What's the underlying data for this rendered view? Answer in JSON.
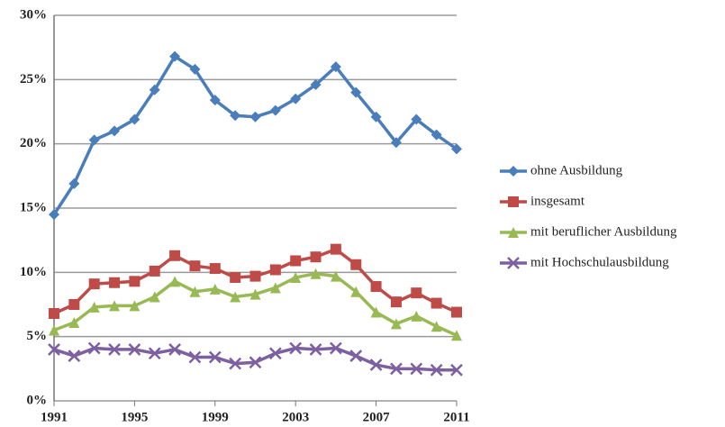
{
  "chart_data": {
    "type": "line",
    "x": [
      1991,
      1992,
      1993,
      1994,
      1995,
      1996,
      1997,
      1998,
      1999,
      2000,
      2001,
      2002,
      2003,
      2004,
      2005,
      2006,
      2007,
      2008,
      2009,
      2010,
      2011
    ],
    "xlim": [
      1991,
      2011
    ],
    "xticks": [
      1991,
      1995,
      1999,
      2003,
      2007,
      2011
    ],
    "ylim": [
      0,
      30
    ],
    "yticks": [
      {
        "value": 0,
        "label": "0%"
      },
      {
        "value": 5,
        "label": "5%"
      },
      {
        "value": 10,
        "label": "10%"
      },
      {
        "value": 15,
        "label": "15%"
      },
      {
        "value": 20,
        "label": "20%"
      },
      {
        "value": 25,
        "label": "25%"
      },
      {
        "value": 30,
        "label": "30%"
      }
    ],
    "grid": true,
    "legend": "right",
    "series": [
      {
        "name": "ohne Ausbildung",
        "color": "#4a7ebb",
        "marker": "diamond",
        "values": [
          14.5,
          16.9,
          20.3,
          21.0,
          21.9,
          24.2,
          26.8,
          25.8,
          23.4,
          22.2,
          22.1,
          22.6,
          23.5,
          24.6,
          26.0,
          24.0,
          22.1,
          20.1,
          21.9,
          20.7,
          19.6
        ]
      },
      {
        "name": "insgesamt",
        "color": "#be4b48",
        "marker": "square",
        "values": [
          6.8,
          7.5,
          9.1,
          9.2,
          9.3,
          10.1,
          11.3,
          10.5,
          10.3,
          9.6,
          9.7,
          10.2,
          10.9,
          11.2,
          11.8,
          10.6,
          8.9,
          7.7,
          8.4,
          7.6,
          6.9
        ]
      },
      {
        "name": "mit beruflicher Ausbildung",
        "color": "#98b954",
        "marker": "triangle",
        "values": [
          5.5,
          6.1,
          7.3,
          7.4,
          7.4,
          8.1,
          9.3,
          8.5,
          8.7,
          8.1,
          8.3,
          8.8,
          9.6,
          9.9,
          9.7,
          8.5,
          6.9,
          6.0,
          6.6,
          5.8,
          5.1
        ]
      },
      {
        "name": "mit Hochschulausbildung",
        "color": "#7d60a0",
        "marker": "x",
        "values": [
          4.0,
          3.5,
          4.1,
          4.0,
          4.0,
          3.7,
          4.0,
          3.4,
          3.4,
          2.9,
          3.0,
          3.7,
          4.1,
          4.0,
          4.1,
          3.5,
          2.8,
          2.5,
          2.5,
          2.4,
          2.4
        ]
      }
    ]
  }
}
